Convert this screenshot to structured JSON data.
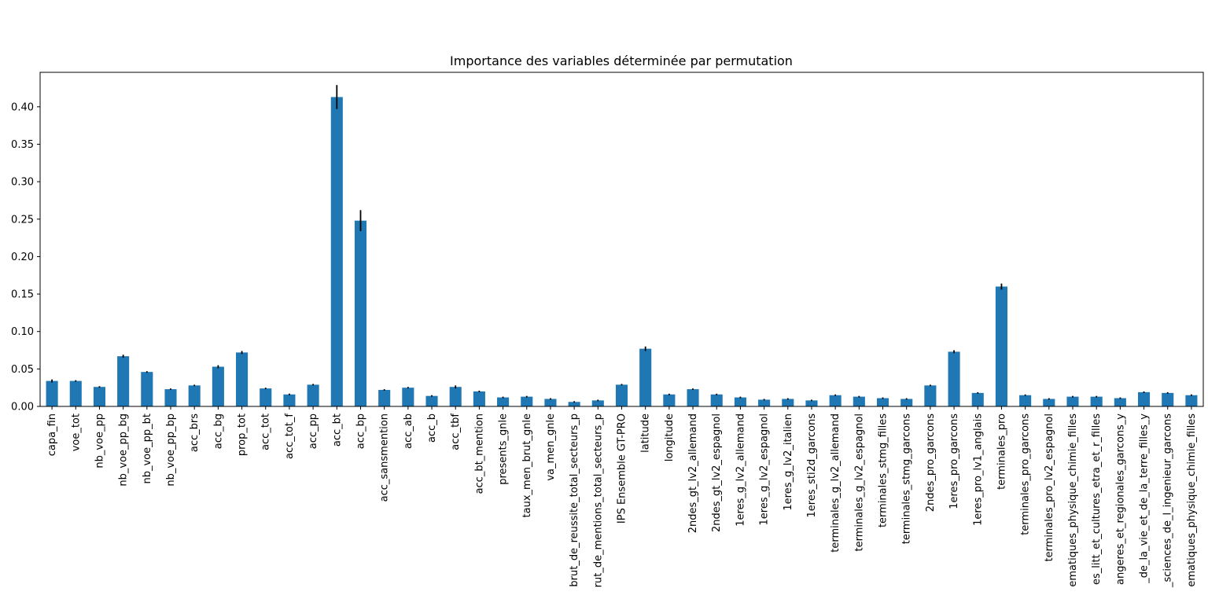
{
  "chart_data": {
    "type": "bar",
    "title": "Importance des variables déterminée par permutation",
    "xlabel": "",
    "ylabel": "",
    "ylim": [
      0,
      0.446
    ],
    "yticks": [
      0.0,
      0.05,
      0.1,
      0.15,
      0.2,
      0.25,
      0.3,
      0.35,
      0.4
    ],
    "grid": false,
    "legend": "none",
    "bar_color": "#1f77b4",
    "error_color": "#000000",
    "categories": [
      "capa_fin",
      "voe_tot",
      "nb_voe_pp",
      "nb_voe_pp_bg",
      "nb_voe_pp_bt",
      "nb_voe_pp_bp",
      "acc_brs",
      "acc_bg",
      "prop_tot",
      "acc_tot",
      "acc_tot_f",
      "acc_pp",
      "acc_bt",
      "acc_bp",
      "acc_sansmention",
      "acc_ab",
      "acc_b",
      "acc_tbf",
      "acc_bt_mention",
      "presents_gnle",
      "taux_men_brut_gnle",
      "va_men_gnle",
      "brut_de_reussite_total_secteurs_p",
      "rut_de_mentions_total_secteurs_p",
      "IPS Ensemble GT-PRO",
      "latitude",
      "longitude",
      "2ndes_gt_lv2_allemand",
      "2ndes_gt_lv2_espagnol",
      "1eres_g_lv2_allemand",
      "1eres_g_lv2_espagnol",
      "1eres_g_lv2_italien",
      "1eres_sti2d_garcons",
      "terminales_g_lv2_allemand",
      "terminales_g_lv2_espagnol",
      "terminales_stmg_filles",
      "terminales_stmg_garcons",
      "2ndes_pro_garcons",
      "1eres_pro_garcons",
      "1eres_pro_lv1_anglais",
      "terminales_pro",
      "terminales_pro_garcons",
      "terminales_pro_lv2_espagnol",
      "ematiques_physique_chimie_filles",
      "es_litt_et_cultures_etra_et_r_filles",
      "angeres_et_regionales_garcons_y",
      "_de_la_vie_et_de_la_terre_filles_y",
      "_sciences_de_l_ingenieur_garcons",
      "ematiques_physique_chimie_filles"
    ],
    "values": [
      0.034,
      0.034,
      0.026,
      0.067,
      0.046,
      0.023,
      0.028,
      0.053,
      0.072,
      0.024,
      0.016,
      0.029,
      0.413,
      0.248,
      0.022,
      0.025,
      0.014,
      0.026,
      0.02,
      0.012,
      0.013,
      0.01,
      0.006,
      0.008,
      0.029,
      0.077,
      0.016,
      0.023,
      0.016,
      0.012,
      0.009,
      0.01,
      0.008,
      0.015,
      0.013,
      0.011,
      0.01,
      0.028,
      0.073,
      0.018,
      0.16,
      0.015,
      0.01,
      0.013,
      0.013,
      0.011,
      0.019,
      0.018,
      0.015
    ],
    "errors": [
      0.002,
      0.001,
      0.001,
      0.002,
      0.001,
      0.001,
      0.001,
      0.002,
      0.002,
      0.001,
      0.001,
      0.001,
      0.016,
      0.014,
      0.001,
      0.001,
      0.001,
      0.002,
      0.001,
      0.001,
      0.001,
      0.001,
      0.001,
      0.001,
      0.001,
      0.003,
      0.001,
      0.001,
      0.001,
      0.001,
      0.001,
      0.001,
      0.001,
      0.001,
      0.001,
      0.001,
      0.001,
      0.001,
      0.002,
      0.001,
      0.004,
      0.001,
      0.001,
      0.001,
      0.001,
      0.001,
      0.001,
      0.001,
      0.001
    ]
  }
}
